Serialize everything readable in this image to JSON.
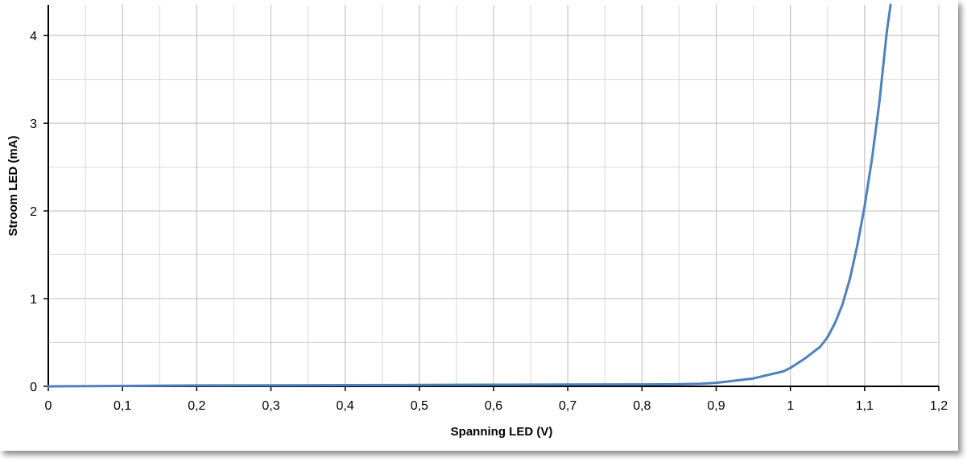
{
  "chart_data": {
    "type": "line",
    "title": "",
    "xlabel": "Spanning LED (V)",
    "ylabel": "Stroom LED (mA)",
    "xlim": [
      0,
      1.2
    ],
    "ylim": [
      0,
      4.35
    ],
    "x_major_ticks": [
      0,
      0.1,
      0.2,
      0.3,
      0.4,
      0.5,
      0.6,
      0.7,
      0.8,
      0.9,
      1,
      1.1,
      1.2
    ],
    "x_tick_labels": [
      "0",
      "0,1",
      "0,2",
      "0,3",
      "0,4",
      "0,5",
      "0,6",
      "0,7",
      "0,8",
      "0,9",
      "1",
      "1,1",
      "1,2"
    ],
    "x_minor_step": 0.05,
    "y_major_ticks": [
      0,
      1,
      2,
      3,
      4
    ],
    "y_tick_labels": [
      "0",
      "1",
      "2",
      "3",
      "4"
    ],
    "y_minor_step": 0.5,
    "grid": true,
    "series_color": "#4F81BD",
    "series": [
      {
        "x": [
          0,
          0.1,
          0.2,
          0.3,
          0.4,
          0.5,
          0.6,
          0.7,
          0.8,
          0.85,
          0.88,
          0.9,
          0.92,
          0.95,
          0.97,
          0.99,
          1.0,
          1.02,
          1.04,
          1.05,
          1.06,
          1.07,
          1.08,
          1.09,
          1.1,
          1.11,
          1.12,
          1.125,
          1.13,
          1.135
        ],
        "y": [
          0,
          0.005,
          0.01,
          0.012,
          0.014,
          0.016,
          0.018,
          0.02,
          0.022,
          0.024,
          0.03,
          0.04,
          0.06,
          0.09,
          0.13,
          0.17,
          0.21,
          0.32,
          0.45,
          0.56,
          0.72,
          0.93,
          1.22,
          1.6,
          2.05,
          2.6,
          3.25,
          3.65,
          4.05,
          4.35
        ]
      }
    ]
  }
}
